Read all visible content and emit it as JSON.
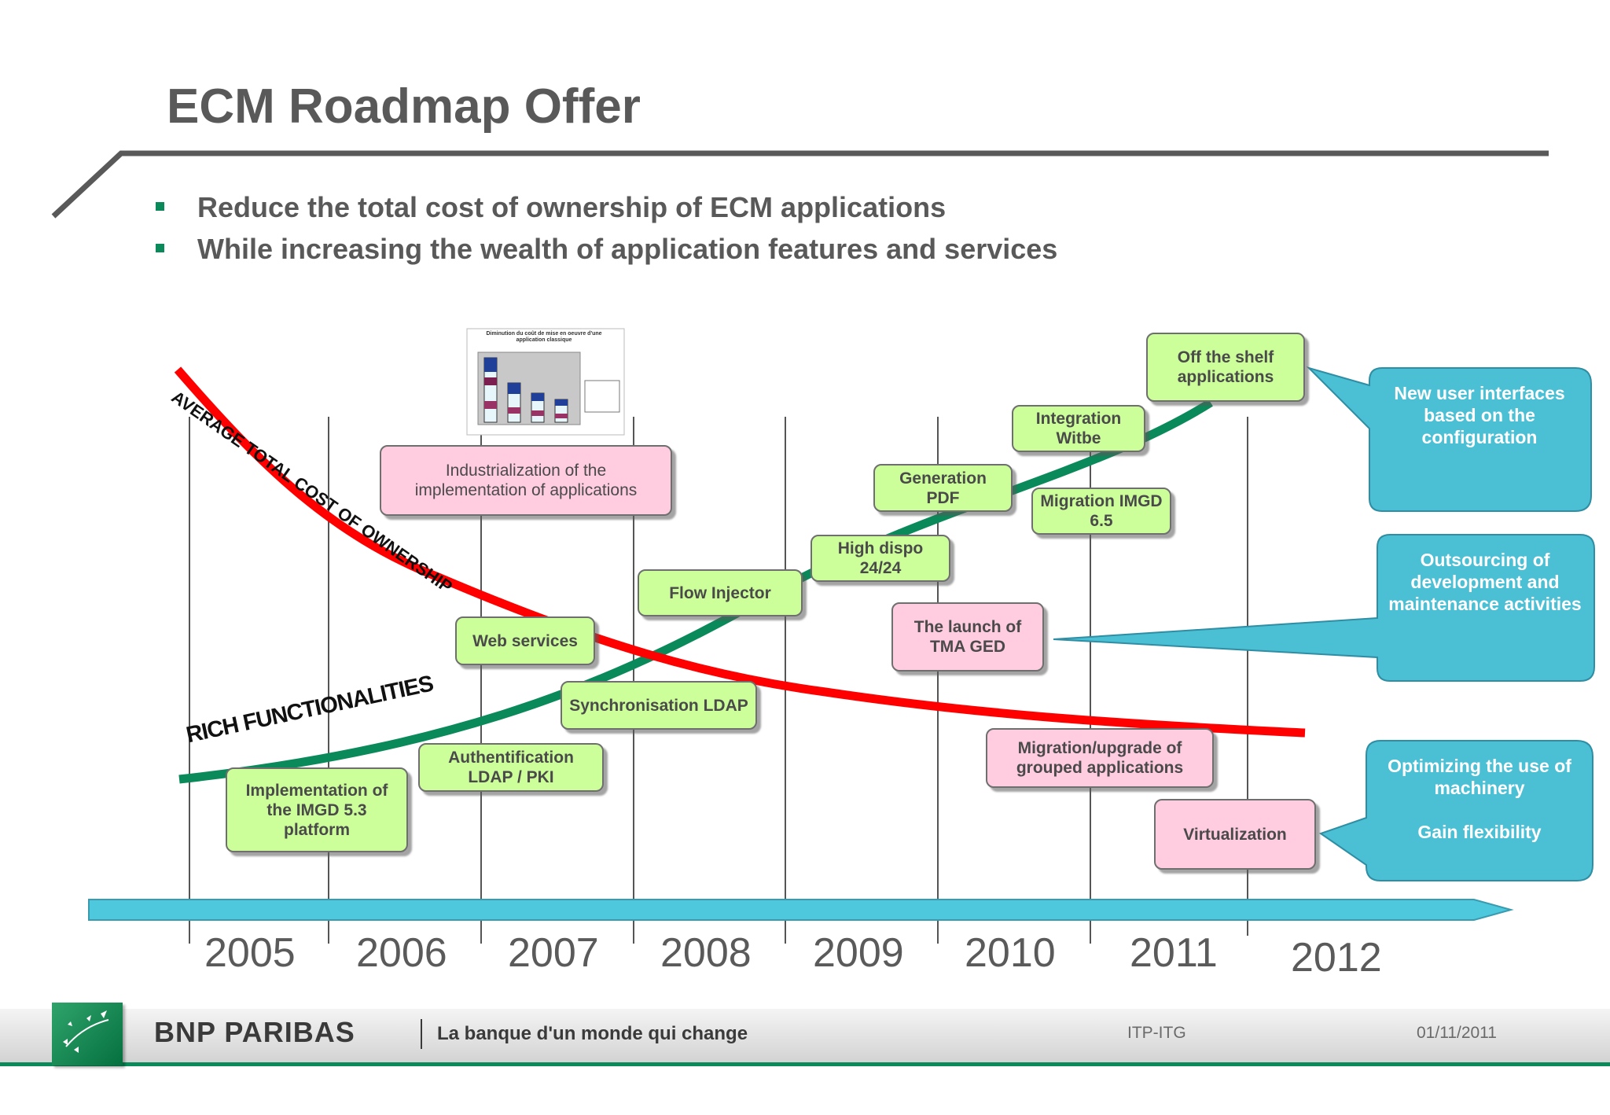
{
  "title": "ECM Roadmap Offer",
  "bullets": [
    "Reduce the total cost of ownership of ECM applications",
    "While increasing the wealth of application features and services"
  ],
  "curve_labels": {
    "cost": "AVERAGE TOTAL COST OF OWNERSHIP",
    "features": "RICH FUNCTIONALITIES"
  },
  "years": [
    "2005",
    "2006",
    "2007",
    "2008",
    "2009",
    "2010",
    "2011",
    "2012"
  ],
  "items": {
    "imgd53": "Implementation of the IMGD 5.3 platform",
    "auth": "Authentification LDAP / PKI",
    "sync": "Synchronisation LDAP",
    "web": "Web services",
    "flow": "Flow Injector",
    "industrialization": "Industrialization of the implementation of applications",
    "highdispo": "High dispo 24/24",
    "genpdf": "Generation PDF",
    "tma": "The launch of TMA GED",
    "witbe": "Integration Witbe",
    "imgd65": "Migration IMGD 6.5",
    "offshelf": "Off the shelf applications",
    "migupgrade": "Migration/upgrade of grouped applications",
    "virtualization": "Virtualization"
  },
  "callouts": {
    "ui": "New user interfaces based on the configuration",
    "outsourcing": "Outsourcing of development and maintenance activities",
    "optimizing": "Optimizing the use of machinery\n\nGain flexibility"
  },
  "mini_chart": {
    "title": "Diminution du coût de mise en oeuvre d'une application classique"
  },
  "footer": {
    "brand": "BNP PARIBAS",
    "tagline": "La banque d'un monde qui change",
    "dept": "ITP-ITG",
    "date": "01/11/2011"
  },
  "colors": {
    "cost_curve": "#ff0000",
    "feature_curve": "#0a8a5a",
    "callout": "#4bbfd4",
    "green_box": "#ccff99",
    "pink_box": "#ffcce0",
    "brand_green": "#0a8a5a"
  }
}
